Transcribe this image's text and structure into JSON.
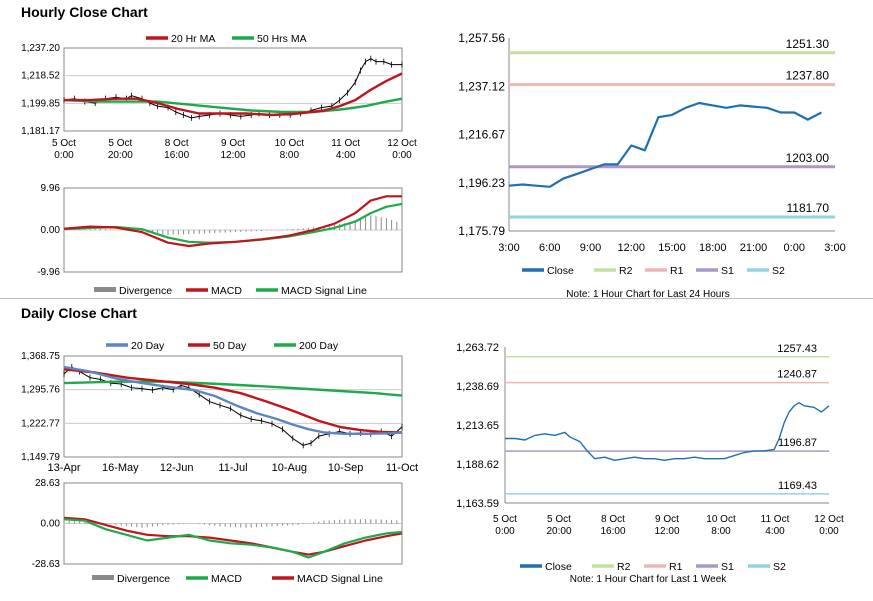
{
  "titles": {
    "hourly": "Hourly Close Chart",
    "daily": "Daily Close Chart"
  },
  "colors": {
    "ma20h": "#c0141c",
    "ma50h": "#1daa4c",
    "price": "#000000",
    "divergence": "#8a8a8a",
    "macd_hourly": "#c0141c",
    "signal_hourly": "#1daa4c",
    "ma20d": "#5a86c4",
    "ma50d": "#c0141c",
    "ma200d": "#1daa4c",
    "macd_daily": "#1daa4c",
    "signal_daily": "#c0141c",
    "close": "#1f6fb2",
    "r2": "#c3e0a0",
    "r1": "#eab8b5",
    "s1": "#a998c8",
    "s2": "#93d3e0"
  },
  "chart_data": [
    {
      "id": "hourly_price",
      "type": "line",
      "legend": [
        "20 Hr MA",
        "50 Hrs MA"
      ],
      "y_ticks": [
        "1,237.20",
        "1,218.52",
        "1,199.85",
        "1,181.17"
      ],
      "ylim": [
        1181.17,
        1237.2
      ],
      "x_ticks": [
        [
          "5 Oct",
          "0:00"
        ],
        [
          "5 Oct",
          "20:00"
        ],
        [
          "8 Oct",
          "16:00"
        ],
        [
          "9 Oct",
          "12:00"
        ],
        [
          "10 Oct",
          "8:00"
        ],
        [
          "11 Oct",
          "4:00"
        ],
        [
          "12 Oct",
          "0:00"
        ]
      ],
      "x_range": [
        0,
        130
      ],
      "price": [
        [
          0,
          1202
        ],
        [
          4,
          1203
        ],
        [
          8,
          1201
        ],
        [
          12,
          1200
        ],
        [
          16,
          1203
        ],
        [
          20,
          1204
        ],
        [
          24,
          1203
        ],
        [
          26,
          1205
        ],
        [
          30,
          1203
        ],
        [
          33,
          1200
        ],
        [
          36,
          1198
        ],
        [
          40,
          1197
        ],
        [
          43,
          1194
        ],
        [
          46,
          1192
        ],
        [
          49,
          1190
        ],
        [
          52,
          1191
        ],
        [
          56,
          1192
        ],
        [
          60,
          1193
        ],
        [
          64,
          1192
        ],
        [
          68,
          1191
        ],
        [
          72,
          1192
        ],
        [
          75,
          1193
        ],
        [
          79,
          1192
        ],
        [
          83,
          1192
        ],
        [
          87,
          1192
        ],
        [
          91,
          1193
        ],
        [
          95,
          1195
        ],
        [
          99,
          1197
        ],
        [
          103,
          1198
        ],
        [
          106,
          1202
        ],
        [
          109,
          1207
        ],
        [
          112,
          1214
        ],
        [
          114,
          1222
        ],
        [
          116,
          1228
        ],
        [
          118,
          1230
        ],
        [
          120,
          1228
        ],
        [
          123,
          1228
        ],
        [
          126,
          1226
        ],
        [
          130,
          1226
        ]
      ],
      "ma20": [
        [
          0,
          1202
        ],
        [
          10,
          1202
        ],
        [
          20,
          1203
        ],
        [
          28,
          1203
        ],
        [
          36,
          1200
        ],
        [
          44,
          1196
        ],
        [
          52,
          1193
        ],
        [
          60,
          1193
        ],
        [
          70,
          1193
        ],
        [
          80,
          1192
        ],
        [
          90,
          1193
        ],
        [
          100,
          1195
        ],
        [
          106,
          1198
        ],
        [
          112,
          1202
        ],
        [
          118,
          1209
        ],
        [
          124,
          1215
        ],
        [
          130,
          1220
        ]
      ],
      "ma50": [
        [
          0,
          1202
        ],
        [
          12,
          1201
        ],
        [
          24,
          1201
        ],
        [
          36,
          1201
        ],
        [
          48,
          1199
        ],
        [
          60,
          1197
        ],
        [
          72,
          1195
        ],
        [
          84,
          1194
        ],
        [
          96,
          1194
        ],
        [
          108,
          1196
        ],
        [
          116,
          1198
        ],
        [
          124,
          1201
        ],
        [
          130,
          1203
        ]
      ]
    },
    {
      "id": "hourly_macd",
      "type": "line",
      "legend": [
        "Divergence",
        "MACD",
        "MACD Signal Line"
      ],
      "y_ticks": [
        "9.96",
        "0.00",
        "-9.96"
      ],
      "ylim": [
        -9.96,
        9.96
      ],
      "divergence": [
        [
          0,
          0
        ],
        [
          15,
          0.3
        ],
        [
          30,
          -0.5
        ],
        [
          40,
          -1.2
        ],
        [
          55,
          -0.8
        ],
        [
          70,
          -0.4
        ],
        [
          85,
          0.1
        ],
        [
          100,
          0.8
        ],
        [
          110,
          1.8
        ],
        [
          118,
          3.5
        ],
        [
          124,
          2.8
        ],
        [
          130,
          1.5
        ]
      ],
      "macd": [
        [
          0,
          0.3
        ],
        [
          10,
          0.8
        ],
        [
          20,
          0.6
        ],
        [
          30,
          -0.5
        ],
        [
          40,
          -3
        ],
        [
          48,
          -3.8
        ],
        [
          56,
          -3.2
        ],
        [
          66,
          -2.8
        ],
        [
          76,
          -2.2
        ],
        [
          86,
          -1.4
        ],
        [
          96,
          0
        ],
        [
          104,
          1.5
        ],
        [
          112,
          4
        ],
        [
          118,
          7
        ],
        [
          124,
          8
        ],
        [
          130,
          8
        ]
      ],
      "signal": [
        [
          0,
          0.2
        ],
        [
          10,
          0.5
        ],
        [
          20,
          0.7
        ],
        [
          30,
          0.2
        ],
        [
          40,
          -1.8
        ],
        [
          48,
          -2.8
        ],
        [
          56,
          -3
        ],
        [
          66,
          -2.8
        ],
        [
          76,
          -2.3
        ],
        [
          86,
          -1.6
        ],
        [
          96,
          -0.5
        ],
        [
          104,
          0.5
        ],
        [
          112,
          2
        ],
        [
          118,
          4
        ],
        [
          124,
          5.5
        ],
        [
          130,
          6.2
        ]
      ]
    },
    {
      "id": "hourly_pivot",
      "type": "line",
      "legend": [
        "Close",
        "R2",
        "R1",
        "S1",
        "S2"
      ],
      "y_ticks": [
        "1,257.56",
        "1,237.12",
        "1,216.67",
        "1,196.23",
        "1,175.79"
      ],
      "ylim": [
        1175.79,
        1257.56
      ],
      "x_ticks": [
        "3:00",
        "6:00",
        "9:00",
        "12:00",
        "15:00",
        "18:00",
        "21:00",
        "0:00",
        "3:00"
      ],
      "x_range": [
        0,
        24
      ],
      "close": [
        [
          0,
          1195
        ],
        [
          1,
          1195.5
        ],
        [
          2,
          1195
        ],
        [
          3,
          1194.5
        ],
        [
          4,
          1198
        ],
        [
          5,
          1200
        ],
        [
          6,
          1202
        ],
        [
          7,
          1204
        ],
        [
          8,
          1204
        ],
        [
          9,
          1212
        ],
        [
          10,
          1210
        ],
        [
          11,
          1224
        ],
        [
          12,
          1225
        ],
        [
          13,
          1228
        ],
        [
          14,
          1230
        ],
        [
          15,
          1229
        ],
        [
          16,
          1228
        ],
        [
          17,
          1229
        ],
        [
          18,
          1228.5
        ],
        [
          19,
          1228
        ],
        [
          20,
          1226
        ],
        [
          21,
          1226
        ],
        [
          22,
          1223
        ],
        [
          23,
          1226
        ]
      ],
      "levels": {
        "R2": 1251.3,
        "R1": 1237.8,
        "S1": 1203.0,
        "S2": 1181.7
      },
      "level_labels": {
        "R2": "1251.30",
        "R1": "1237.80",
        "S1": "1203.00",
        "S2": "1181.70"
      },
      "note": "Note: 1 Hour Chart for Last 24 Hours"
    },
    {
      "id": "daily_price",
      "type": "line",
      "legend": [
        "20 Day",
        "50 Day",
        "200 Day"
      ],
      "y_ticks": [
        "1,368.75",
        "1,295.76",
        "1,222.77",
        "1,149.79"
      ],
      "ylim": [
        1149.79,
        1368.75
      ],
      "x_ticks": [
        "13-Apr",
        "16-May",
        "12-Jun",
        "11-Jul",
        "10-Aug",
        "10-Sep",
        "11-Oct"
      ],
      "x_range": [
        0,
        130
      ],
      "price": [
        [
          0,
          1330
        ],
        [
          3,
          1345
        ],
        [
          6,
          1335
        ],
        [
          10,
          1322
        ],
        [
          14,
          1318
        ],
        [
          18,
          1310
        ],
        [
          22,
          1308
        ],
        [
          26,
          1300
        ],
        [
          30,
          1298
        ],
        [
          34,
          1295
        ],
        [
          38,
          1300
        ],
        [
          42,
          1296
        ],
        [
          45,
          1305
        ],
        [
          48,
          1300
        ],
        [
          52,
          1285
        ],
        [
          56,
          1270
        ],
        [
          60,
          1262
        ],
        [
          64,
          1255
        ],
        [
          68,
          1240
        ],
        [
          72,
          1232
        ],
        [
          76,
          1228
        ],
        [
          80,
          1222
        ],
        [
          84,
          1210
        ],
        [
          88,
          1190
        ],
        [
          92,
          1175
        ],
        [
          95,
          1180
        ],
        [
          98,
          1195
        ],
        [
          102,
          1200
        ],
        [
          106,
          1205
        ],
        [
          110,
          1200
        ],
        [
          114,
          1202
        ],
        [
          118,
          1200
        ],
        [
          122,
          1205
        ],
        [
          126,
          1195
        ],
        [
          130,
          1215
        ]
      ],
      "ma20": [
        [
          0,
          1345
        ],
        [
          10,
          1335
        ],
        [
          20,
          1320
        ],
        [
          30,
          1310
        ],
        [
          40,
          1302
        ],
        [
          50,
          1295
        ],
        [
          58,
          1282
        ],
        [
          66,
          1262
        ],
        [
          74,
          1245
        ],
        [
          82,
          1232
        ],
        [
          88,
          1220
        ],
        [
          94,
          1210
        ],
        [
          100,
          1203
        ],
        [
          108,
          1200
        ],
        [
          116,
          1200
        ],
        [
          124,
          1201
        ],
        [
          130,
          1203
        ]
      ],
      "ma50": [
        [
          0,
          1340
        ],
        [
          12,
          1333
        ],
        [
          24,
          1322
        ],
        [
          36,
          1315
        ],
        [
          48,
          1308
        ],
        [
          58,
          1300
        ],
        [
          68,
          1288
        ],
        [
          78,
          1270
        ],
        [
          88,
          1250
        ],
        [
          98,
          1228
        ],
        [
          106,
          1215
        ],
        [
          114,
          1208
        ],
        [
          122,
          1204
        ],
        [
          130,
          1203
        ]
      ],
      "ma200": [
        [
          0,
          1310
        ],
        [
          20,
          1313
        ],
        [
          40,
          1313
        ],
        [
          60,
          1308
        ],
        [
          80,
          1302
        ],
        [
          100,
          1295
        ],
        [
          120,
          1288
        ],
        [
          130,
          1283
        ]
      ]
    },
    {
      "id": "daily_macd",
      "type": "line",
      "legend": [
        "Divergence",
        "MACD",
        "MACD Signal Line"
      ],
      "y_ticks": [
        "28.63",
        "0.00",
        "-28.63"
      ],
      "ylim": [
        -28.63,
        28.63
      ],
      "divergence": [
        [
          0,
          2
        ],
        [
          10,
          1
        ],
        [
          20,
          -1
        ],
        [
          30,
          -3
        ],
        [
          40,
          -1
        ],
        [
          50,
          0
        ],
        [
          60,
          -2
        ],
        [
          70,
          -3
        ],
        [
          80,
          -2
        ],
        [
          90,
          -1
        ],
        [
          100,
          2
        ],
        [
          110,
          3
        ],
        [
          120,
          3
        ],
        [
          130,
          2
        ]
      ],
      "macd": [
        [
          0,
          3
        ],
        [
          8,
          2
        ],
        [
          16,
          -4
        ],
        [
          24,
          -8
        ],
        [
          32,
          -12
        ],
        [
          40,
          -10
        ],
        [
          48,
          -8
        ],
        [
          56,
          -12
        ],
        [
          64,
          -14
        ],
        [
          72,
          -15
        ],
        [
          80,
          -17
        ],
        [
          88,
          -20
        ],
        [
          94,
          -24
        ],
        [
          100,
          -20
        ],
        [
          108,
          -14
        ],
        [
          116,
          -10
        ],
        [
          124,
          -7
        ],
        [
          130,
          -6
        ]
      ],
      "signal": [
        [
          0,
          4
        ],
        [
          8,
          3
        ],
        [
          16,
          -1
        ],
        [
          24,
          -5
        ],
        [
          32,
          -8
        ],
        [
          40,
          -9
        ],
        [
          48,
          -9
        ],
        [
          56,
          -10
        ],
        [
          64,
          -12
        ],
        [
          72,
          -14
        ],
        [
          80,
          -17
        ],
        [
          88,
          -20
        ],
        [
          94,
          -22
        ],
        [
          100,
          -20
        ],
        [
          108,
          -16
        ],
        [
          116,
          -12
        ],
        [
          124,
          -9
        ],
        [
          130,
          -7
        ]
      ]
    },
    {
      "id": "daily_pivot",
      "type": "line",
      "legend": [
        "Close",
        "R2",
        "R1",
        "S1",
        "S2"
      ],
      "y_ticks": [
        "1,263.72",
        "1,238.69",
        "1,213.65",
        "1,188.62",
        "1,163.59"
      ],
      "ylim": [
        1163.59,
        1263.72
      ],
      "x_ticks": [
        [
          "5 Oct",
          "0:00"
        ],
        [
          "5 Oct",
          "20:00"
        ],
        [
          "8 Oct",
          "16:00"
        ],
        [
          "9 Oct",
          "12:00"
        ],
        [
          "10 Oct",
          "8:00"
        ],
        [
          "11 Oct",
          "4:00"
        ],
        [
          "12 Oct",
          "0:00"
        ]
      ],
      "x_range": [
        0,
        130
      ],
      "close": [
        [
          0,
          1205
        ],
        [
          4,
          1205
        ],
        [
          8,
          1204
        ],
        [
          12,
          1207
        ],
        [
          16,
          1208
        ],
        [
          20,
          1207
        ],
        [
          24,
          1209
        ],
        [
          26,
          1206
        ],
        [
          30,
          1203
        ],
        [
          33,
          1197
        ],
        [
          36,
          1192
        ],
        [
          40,
          1193
        ],
        [
          44,
          1191
        ],
        [
          48,
          1192
        ],
        [
          52,
          1193
        ],
        [
          56,
          1192
        ],
        [
          60,
          1192
        ],
        [
          64,
          1191
        ],
        [
          68,
          1192
        ],
        [
          72,
          1192
        ],
        [
          76,
          1193
        ],
        [
          80,
          1192
        ],
        [
          84,
          1192
        ],
        [
          88,
          1192
        ],
        [
          92,
          1194
        ],
        [
          96,
          1196
        ],
        [
          100,
          1197
        ],
        [
          104,
          1197
        ],
        [
          108,
          1198
        ],
        [
          110,
          1205
        ],
        [
          112,
          1215
        ],
        [
          114,
          1222
        ],
        [
          116,
          1226
        ],
        [
          118,
          1228
        ],
        [
          120,
          1226
        ],
        [
          124,
          1225
        ],
        [
          127,
          1222
        ],
        [
          130,
          1226
        ]
      ],
      "levels": {
        "R2": 1257.43,
        "R1": 1240.87,
        "S1": 1196.87,
        "S2": 1169.43
      },
      "level_labels": {
        "R2": "1257.43",
        "R1": "1240.87",
        "S1": "1196.87",
        "S2": "1169.43"
      },
      "note": "Note: 1 Hour Chart for Last 1 Week"
    }
  ]
}
